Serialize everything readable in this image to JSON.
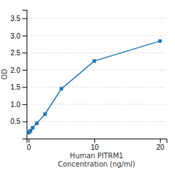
{
  "chart_data": {
    "type": "line",
    "x": [
      0,
      0.156,
      0.313,
      0.625,
      1.25,
      2.5,
      5,
      10,
      20
    ],
    "values": [
      0.174,
      0.202,
      0.229,
      0.316,
      0.443,
      0.713,
      1.45,
      2.26,
      2.84
    ],
    "xlabel": "Human PITRM1\nConcentration (ng/ml)",
    "ylabel": "OD",
    "xlim": [
      -0.3,
      21
    ],
    "ylim": [
      0.0,
      3.75
    ],
    "xticks": [
      0,
      10,
      20
    ],
    "yticks": [
      0.5,
      {
        "value": 1.0,
        "label": "1.0"
      },
      1.5,
      {
        "value": 2.0,
        "label": "2.0"
      },
      2.5,
      {
        "value": 3.0,
        "label": "3.0"
      },
      3.5
    ],
    "grid": true,
    "marker": "square"
  }
}
